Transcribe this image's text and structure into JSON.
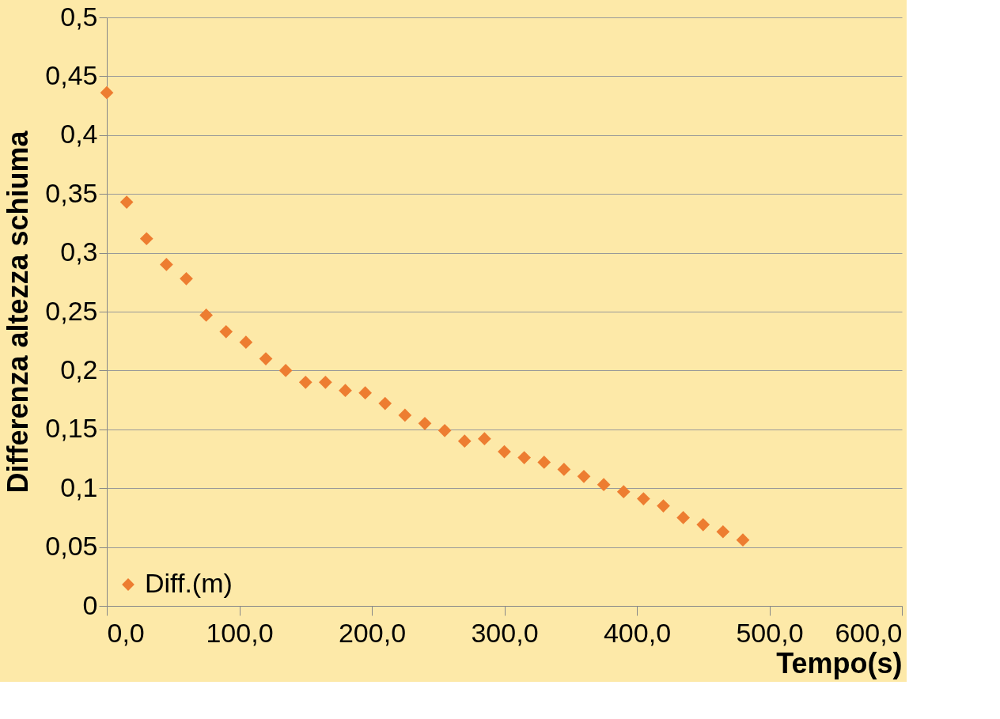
{
  "chart_data": {
    "type": "scatter",
    "xlabel": "Tempo(s)",
    "ylabel": "Differenza altezza schiuma",
    "x": [
      0,
      15,
      30,
      45,
      60,
      75,
      90,
      105,
      120,
      135,
      150,
      165,
      180,
      195,
      210,
      225,
      240,
      255,
      270,
      285,
      300,
      315,
      330,
      345,
      360,
      375,
      390,
      405,
      420,
      435,
      450,
      465,
      480
    ],
    "series": [
      {
        "name": "Diff.(m)",
        "color": "#ed7d31",
        "values": [
          0.436,
          0.343,
          0.312,
          0.29,
          0.278,
          0.247,
          0.233,
          0.224,
          0.21,
          0.2,
          0.19,
          0.19,
          0.183,
          0.181,
          0.172,
          0.162,
          0.155,
          0.149,
          0.14,
          0.142,
          0.131,
          0.126,
          0.122,
          0.116,
          0.11,
          0.103,
          0.097,
          0.091,
          0.085,
          0.075,
          0.069,
          0.063,
          0.056
        ]
      }
    ],
    "xlim": [
      0,
      600
    ],
    "xticks": [
      {
        "value": 0,
        "label": "0,0"
      },
      {
        "value": 100,
        "label": "100,0"
      },
      {
        "value": 200,
        "label": "200,0"
      },
      {
        "value": 300,
        "label": "300,0"
      },
      {
        "value": 400,
        "label": "400,0"
      },
      {
        "value": 500,
        "label": "500,0"
      },
      {
        "value": 600,
        "label": "600,0"
      }
    ],
    "ylim": [
      0,
      0.5
    ],
    "yticks": [
      0,
      {
        "value": 0.05,
        "label": "0,05"
      },
      {
        "value": 0.1,
        "label": "0,1"
      },
      {
        "value": 0.15,
        "label": "0,15"
      },
      {
        "value": 0.2,
        "label": "0,2"
      },
      {
        "value": 0.25,
        "label": "0,25"
      },
      {
        "value": 0.3,
        "label": "0,3"
      },
      {
        "value": 0.35,
        "label": "0,35"
      },
      {
        "value": 0.4,
        "label": "0,4"
      },
      {
        "value": 0.45,
        "label": "0,45"
      },
      {
        "value": 0.5,
        "label": "0,5"
      }
    ],
    "grid": "y",
    "legend": "bottom left",
    "marker": "diamond"
  }
}
